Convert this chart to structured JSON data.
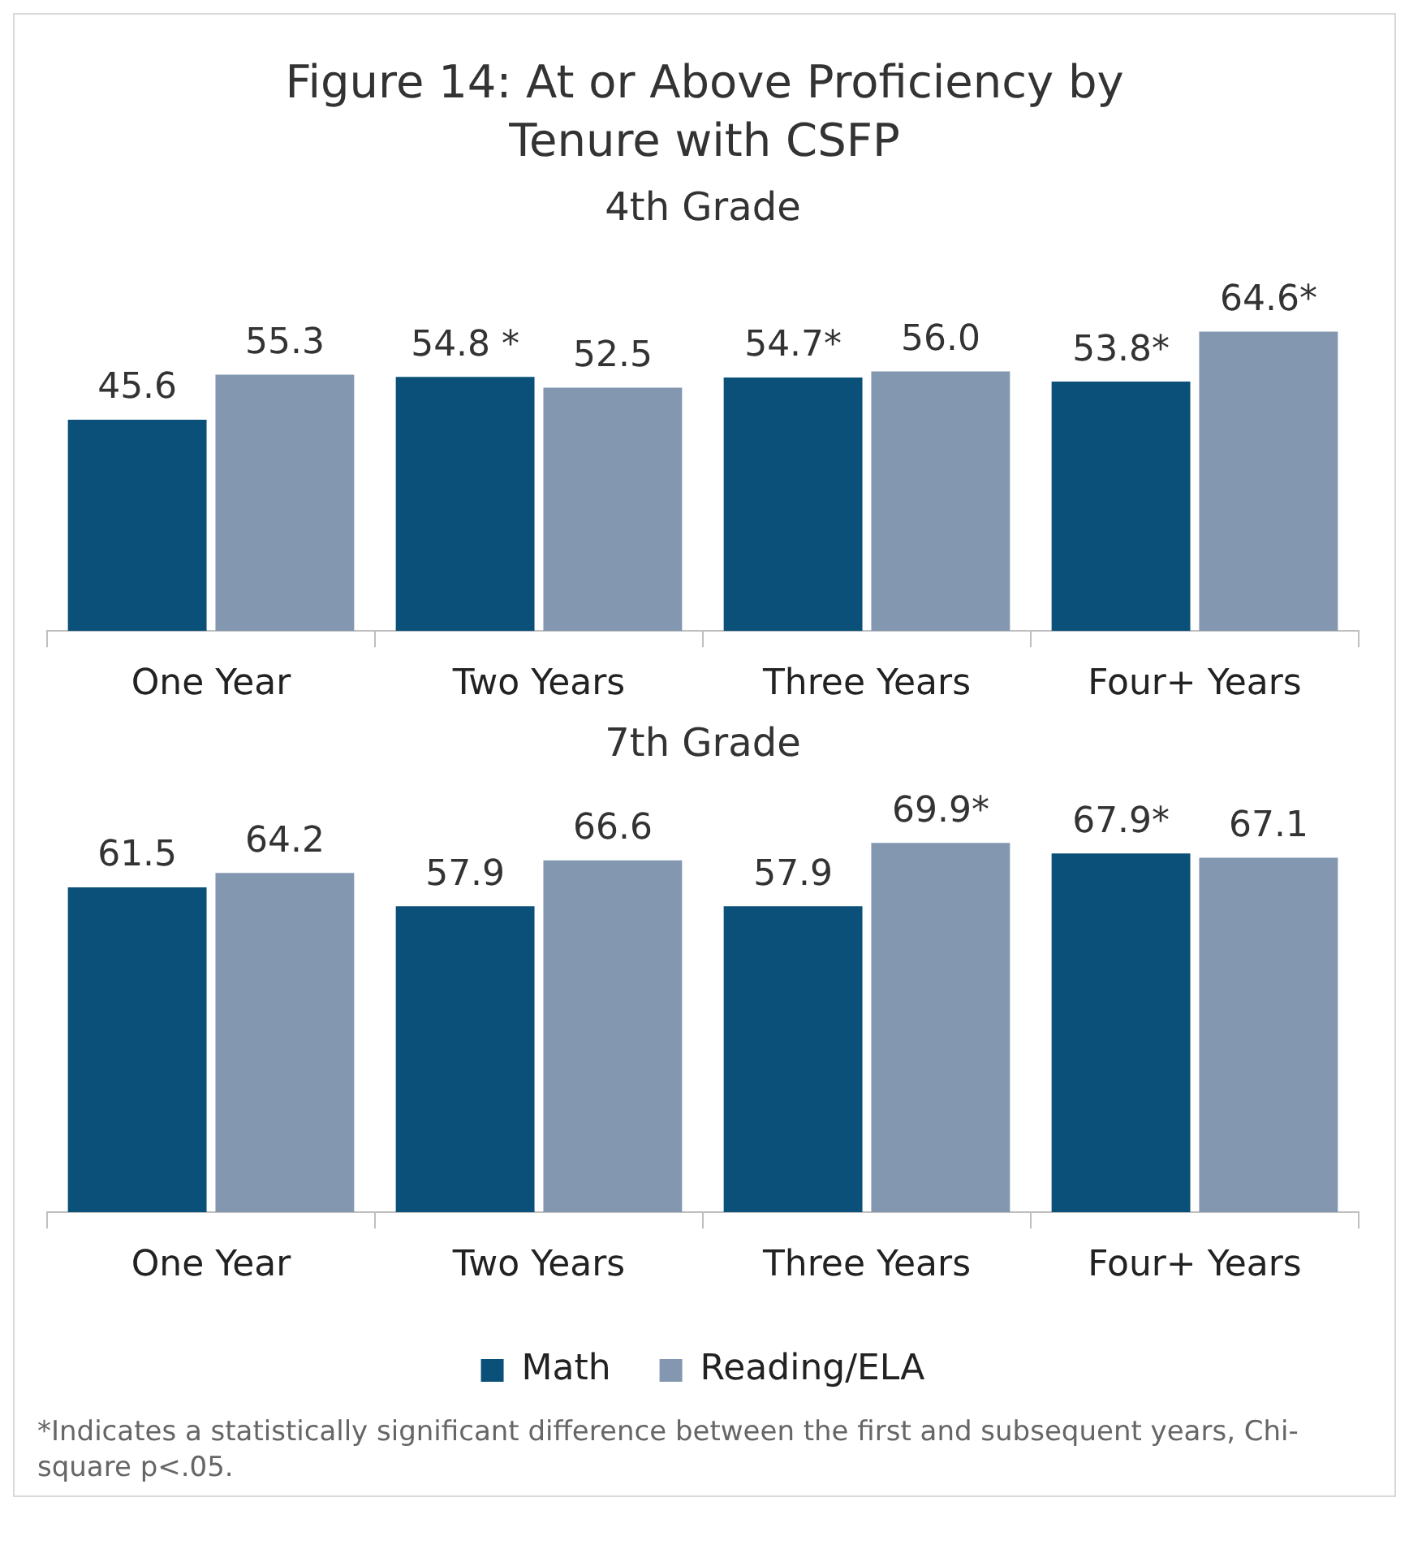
{
  "chart_data": [
    {
      "type": "bar",
      "title": "Figure 14: At or Above Proficiency by Tenure with CSFP",
      "subtitle": "4th Grade",
      "categories": [
        "One Year",
        "Two Years",
        "Three Years",
        "Four+ Years"
      ],
      "series": [
        {
          "color": "#0b5079",
          "values": [
            45.6,
            54.8,
            54.7,
            53.8
          ],
          "value_labels": [
            "45.6",
            "54.8 *",
            "54.7*",
            "53.8*"
          ]
        },
        {
          "color": "#8497b0",
          "values": [
            55.3,
            52.5,
            56.0,
            64.6
          ],
          "value_labels": [
            "55.3",
            "52.5",
            "56.0",
            "64.6*"
          ]
        }
      ],
      "tick_labels": "x",
      "grid": false,
      "legend": false
    },
    {
      "type": "bar",
      "title": "7th Grade",
      "categories": [
        "One Year",
        "Two Years",
        "Three Years",
        "Four+ Years"
      ],
      "series": [
        {
          "name": "Math",
          "color": "#0b5079",
          "values": [
            61.5,
            57.9,
            57.9,
            67.9
          ],
          "value_labels": [
            "61.5",
            "57.9",
            "57.9",
            "67.9*"
          ]
        },
        {
          "name": "Reading/ELA",
          "color": "#8497b0",
          "values": [
            64.2,
            66.6,
            69.9,
            67.1
          ],
          "value_labels": [
            "64.2",
            "66.6",
            "69.9*",
            "67.1"
          ]
        }
      ],
      "tick_labels": "x",
      "grid": false,
      "legend": "bottom",
      "annotations": [
        "*Indicates a statistically significant difference between the first and subsequent years, Chi-square p<.05."
      ]
    }
  ]
}
